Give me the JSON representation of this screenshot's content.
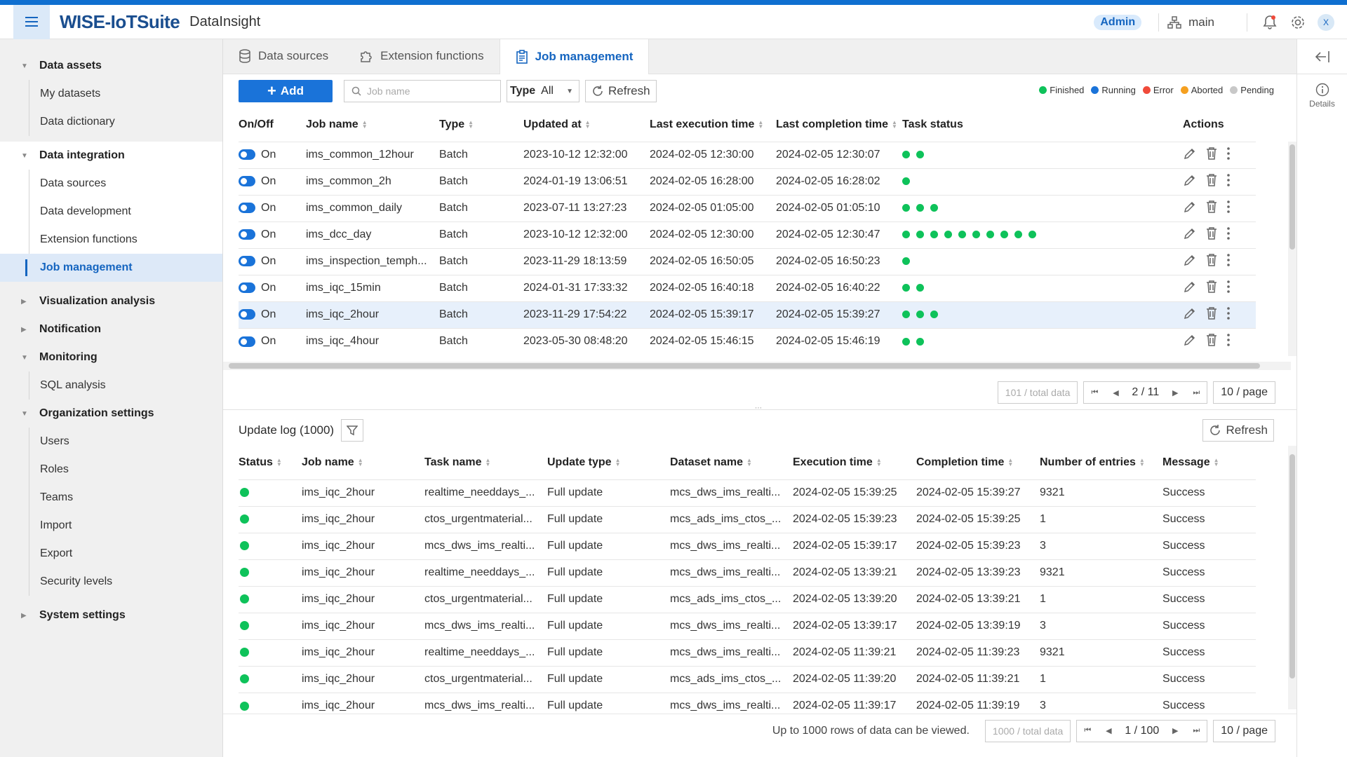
{
  "header": {
    "brand": "WISE-IoTSuite",
    "product": "DataInsight",
    "role_badge": "Admin",
    "branch": "main",
    "avatar_initial": "X"
  },
  "sidebar": {
    "groups": [
      {
        "label": "Data assets",
        "expanded": true,
        "items": [
          {
            "label": "My datasets"
          },
          {
            "label": "Data dictionary"
          }
        ]
      },
      {
        "label": "Data integration",
        "expanded": true,
        "items": [
          {
            "label": "Data sources"
          },
          {
            "label": "Data development"
          },
          {
            "label": "Extension functions"
          },
          {
            "label": "Job management",
            "active": true
          }
        ]
      },
      {
        "label": "Visualization analysis",
        "expanded": false,
        "items": []
      },
      {
        "label": "Notification",
        "expanded": false,
        "items": []
      },
      {
        "label": "Monitoring",
        "expanded": true,
        "items": [
          {
            "label": "SQL analysis"
          }
        ]
      },
      {
        "label": "Organization settings",
        "expanded": true,
        "items": [
          {
            "label": "Users"
          },
          {
            "label": "Roles"
          },
          {
            "label": "Teams"
          },
          {
            "label": "Import"
          },
          {
            "label": "Export"
          },
          {
            "label": "Security levels"
          }
        ]
      },
      {
        "label": "System settings",
        "expanded": false,
        "items": []
      }
    ]
  },
  "tabs": [
    {
      "label": "Data sources",
      "icon": "database-icon"
    },
    {
      "label": "Extension functions",
      "icon": "puzzle-icon"
    },
    {
      "label": "Job management",
      "icon": "clipboard-icon",
      "active": true
    }
  ],
  "toolbar": {
    "add_label": "Add",
    "search_placeholder": "Job name",
    "type_label": "Type",
    "type_value": "All",
    "refresh_label": "Refresh"
  },
  "legend": [
    {
      "label": "Finished",
      "color": "#0ec25a"
    },
    {
      "label": "Running",
      "color": "#1a73d9"
    },
    {
      "label": "Error",
      "color": "#f04a3a"
    },
    {
      "label": "Aborted",
      "color": "#f5a020"
    },
    {
      "label": "Pending",
      "color": "#c8c8c8"
    }
  ],
  "jobs_table": {
    "columns": [
      "On/Off",
      "Job name",
      "Type",
      "Updated at",
      "Last execution time",
      "Last completion time",
      "Task status",
      "Actions"
    ],
    "rows": [
      {
        "toggle": "On",
        "name": "ims_common_12hour",
        "type": "Batch",
        "updated": "2023-10-12 12:32:00",
        "last_exec": "2024-02-05 12:30:00",
        "last_done": "2024-02-05 12:30:07",
        "tasks": 2
      },
      {
        "toggle": "On",
        "name": "ims_common_2h",
        "type": "Batch",
        "updated": "2024-01-19 13:06:51",
        "last_exec": "2024-02-05 16:28:00",
        "last_done": "2024-02-05 16:28:02",
        "tasks": 1
      },
      {
        "toggle": "On",
        "name": "ims_common_daily",
        "type": "Batch",
        "updated": "2023-07-11 13:27:23",
        "last_exec": "2024-02-05 01:05:00",
        "last_done": "2024-02-05 01:05:10",
        "tasks": 3
      },
      {
        "toggle": "On",
        "name": "ims_dcc_day",
        "type": "Batch",
        "updated": "2023-10-12 12:32:00",
        "last_exec": "2024-02-05 12:30:00",
        "last_done": "2024-02-05 12:30:47",
        "tasks": 10
      },
      {
        "toggle": "On",
        "name": "ims_inspection_temph...",
        "type": "Batch",
        "updated": "2023-11-29 18:13:59",
        "last_exec": "2024-02-05 16:50:05",
        "last_done": "2024-02-05 16:50:23",
        "tasks": 1
      },
      {
        "toggle": "On",
        "name": "ims_iqc_15min",
        "type": "Batch",
        "updated": "2024-01-31 17:33:32",
        "last_exec": "2024-02-05 16:40:18",
        "last_done": "2024-02-05 16:40:22",
        "tasks": 2
      },
      {
        "toggle": "On",
        "name": "ims_iqc_2hour",
        "type": "Batch",
        "updated": "2023-11-29 17:54:22",
        "last_exec": "2024-02-05 15:39:17",
        "last_done": "2024-02-05 15:39:27",
        "tasks": 3,
        "selected": true
      },
      {
        "toggle": "On",
        "name": "ims_iqc_4hour",
        "type": "Batch",
        "updated": "2023-05-30 08:48:20",
        "last_exec": "2024-02-05 15:46:15",
        "last_done": "2024-02-05 15:46:19",
        "tasks": 2
      }
    ],
    "pagination": {
      "total": "101 / total data",
      "page": "2 / 11",
      "page_size": "10 / page"
    }
  },
  "update_log": {
    "title": "Update log (1000)",
    "refresh_label": "Refresh",
    "columns": [
      "Status",
      "Job name",
      "Task name",
      "Update type",
      "Dataset name",
      "Execution time",
      "Completion time",
      "Number of entries",
      "Message"
    ],
    "rows": [
      {
        "job": "ims_iqc_2hour",
        "task": "realtime_needdays_...",
        "update_type": "Full update",
        "dataset": "mcs_dws_ims_realti...",
        "exec": "2024-02-05 15:39:25",
        "done": "2024-02-05 15:39:27",
        "entries": "9321",
        "message": "Success"
      },
      {
        "job": "ims_iqc_2hour",
        "task": "ctos_urgentmaterial...",
        "update_type": "Full update",
        "dataset": "mcs_ads_ims_ctos_...",
        "exec": "2024-02-05 15:39:23",
        "done": "2024-02-05 15:39:25",
        "entries": "1",
        "message": "Success"
      },
      {
        "job": "ims_iqc_2hour",
        "task": "mcs_dws_ims_realti...",
        "update_type": "Full update",
        "dataset": "mcs_dws_ims_realti...",
        "exec": "2024-02-05 15:39:17",
        "done": "2024-02-05 15:39:23",
        "entries": "3",
        "message": "Success"
      },
      {
        "job": "ims_iqc_2hour",
        "task": "realtime_needdays_...",
        "update_type": "Full update",
        "dataset": "mcs_dws_ims_realti...",
        "exec": "2024-02-05 13:39:21",
        "done": "2024-02-05 13:39:23",
        "entries": "9321",
        "message": "Success"
      },
      {
        "job": "ims_iqc_2hour",
        "task": "ctos_urgentmaterial...",
        "update_type": "Full update",
        "dataset": "mcs_ads_ims_ctos_...",
        "exec": "2024-02-05 13:39:20",
        "done": "2024-02-05 13:39:21",
        "entries": "1",
        "message": "Success"
      },
      {
        "job": "ims_iqc_2hour",
        "task": "mcs_dws_ims_realti...",
        "update_type": "Full update",
        "dataset": "mcs_dws_ims_realti...",
        "exec": "2024-02-05 13:39:17",
        "done": "2024-02-05 13:39:19",
        "entries": "3",
        "message": "Success"
      },
      {
        "job": "ims_iqc_2hour",
        "task": "realtime_needdays_...",
        "update_type": "Full update",
        "dataset": "mcs_dws_ims_realti...",
        "exec": "2024-02-05 11:39:21",
        "done": "2024-02-05 11:39:23",
        "entries": "9321",
        "message": "Success"
      },
      {
        "job": "ims_iqc_2hour",
        "task": "ctos_urgentmaterial...",
        "update_type": "Full update",
        "dataset": "mcs_ads_ims_ctos_...",
        "exec": "2024-02-05 11:39:20",
        "done": "2024-02-05 11:39:21",
        "entries": "1",
        "message": "Success"
      },
      {
        "job": "ims_iqc_2hour",
        "task": "mcs_dws_ims_realti...",
        "update_type": "Full update",
        "dataset": "mcs_dws_ims_realti...",
        "exec": "2024-02-05 11:39:17",
        "done": "2024-02-05 11:39:19",
        "entries": "3",
        "message": "Success"
      }
    ],
    "pagination": {
      "limit_note": "Up to 1000 rows of data can be viewed.",
      "total": "1000 / total data",
      "page": "1 / 100",
      "page_size": "10 / page"
    }
  },
  "right_rail": {
    "details_label": "Details"
  }
}
